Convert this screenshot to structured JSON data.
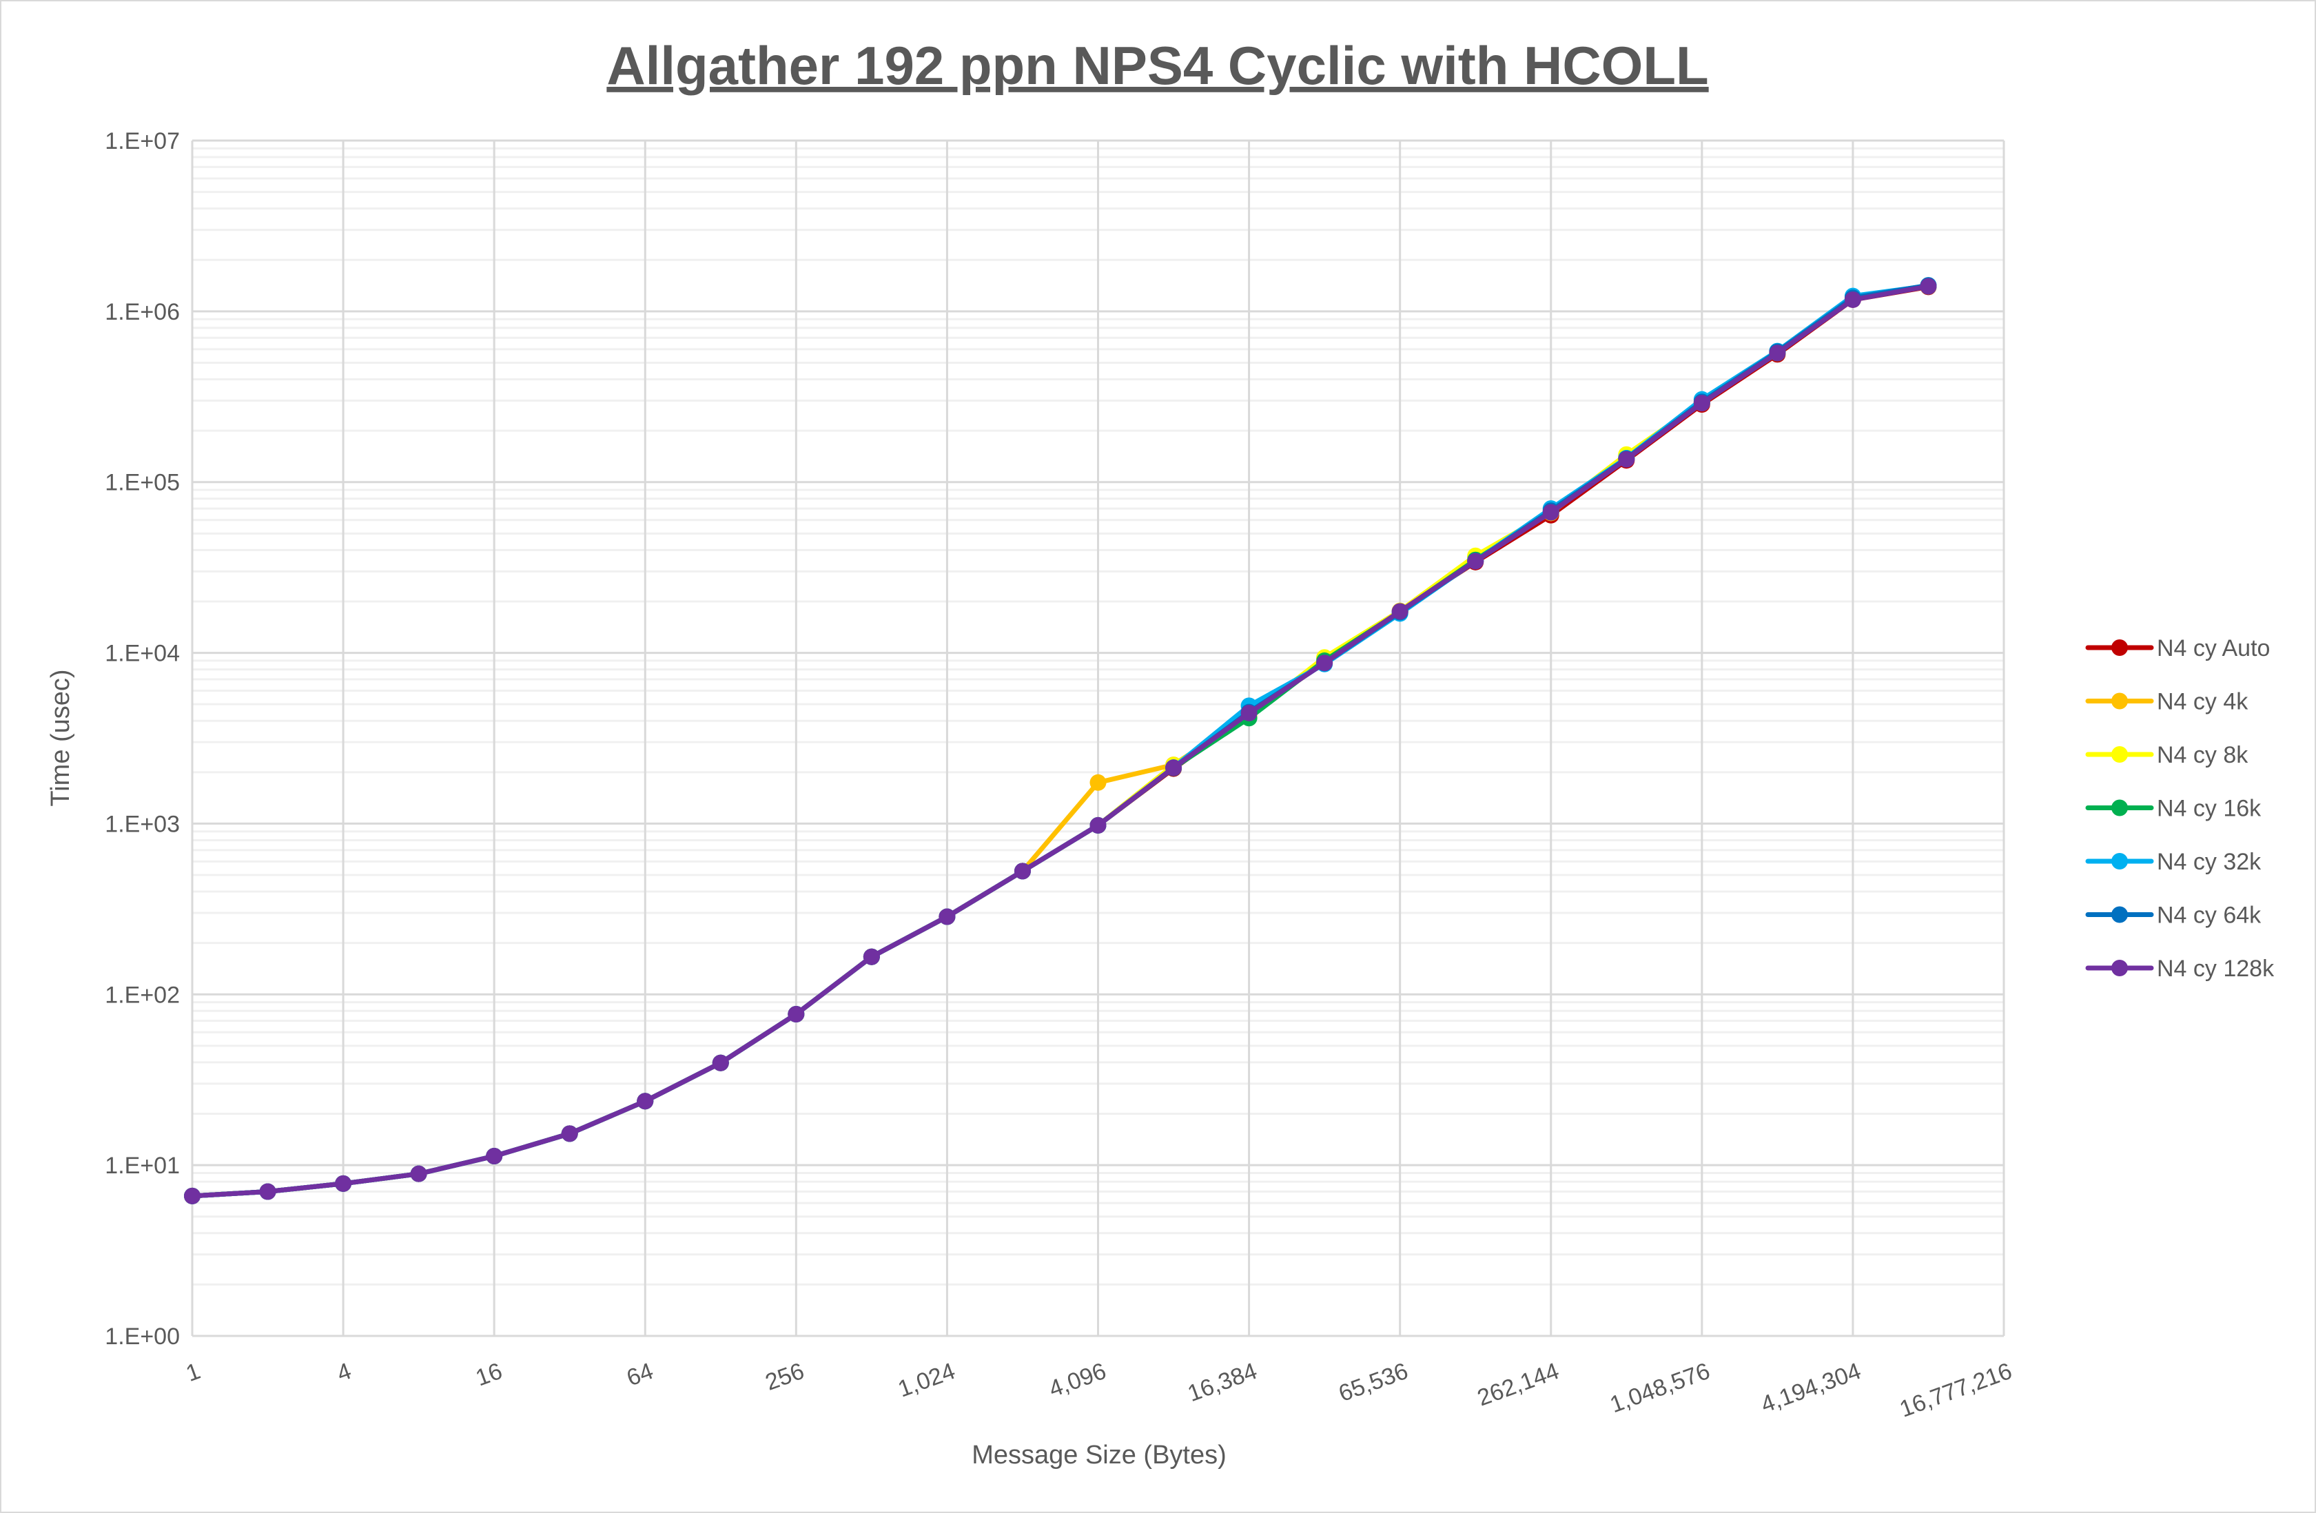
{
  "chart_data": {
    "type": "line",
    "title": "Allgather 192 ppn NPS4 Cyclic with HCOLL",
    "xlabel": "Message Size (Bytes)",
    "ylabel": "Time (usec)",
    "x_scale": "log2",
    "y_scale": "log10",
    "xlim": [
      1,
      16777216
    ],
    "ylim": [
      1,
      10000000
    ],
    "grid": true,
    "legend_position": "right",
    "x_tick_labels": [
      "1",
      "4",
      "16",
      "64",
      "256",
      "1,024",
      "4,096",
      "16,384",
      "65,536",
      "262,144",
      "1,048,576",
      "4,194,304",
      "16,777,216"
    ],
    "y_tick_labels": [
      "1.E+00",
      "1.E+01",
      "1.E+02",
      "1.E+03",
      "1.E+04",
      "1.E+05",
      "1.E+06",
      "1.E+07"
    ],
    "x": [
      1,
      2,
      4,
      8,
      16,
      32,
      64,
      128,
      256,
      512,
      1024,
      2048,
      4096,
      8192,
      16384,
      32768,
      65536,
      131072,
      262144,
      524288,
      1048576,
      2097152,
      4194304,
      8388608
    ],
    "series": [
      {
        "name": "N4 cy Auto",
        "color": "#C00000",
        "values": [
          6.6,
          7.0,
          7.8,
          8.9,
          11.3,
          15.3,
          23.7,
          39.7,
          76.6,
          166,
          285,
          527,
          977,
          2100,
          4350,
          8800,
          17500,
          34000,
          64000,
          134000,
          285000,
          560000,
          1170000,
          1390000
        ]
      },
      {
        "name": "N4 cy 4k",
        "color": "#FFC000",
        "values": [
          6.6,
          7.0,
          7.8,
          8.9,
          11.3,
          15.3,
          23.7,
          39.7,
          76.6,
          166,
          285,
          527,
          1740,
          2210,
          4300,
          9300,
          17600,
          36500,
          66000,
          142000,
          290000,
          575000,
          1180000,
          1400000
        ]
      },
      {
        "name": "N4 cy 8k",
        "color": "#FFFF00",
        "values": [
          6.6,
          7.0,
          7.8,
          8.9,
          11.3,
          15.3,
          23.7,
          39.7,
          76.6,
          166,
          285,
          527,
          977,
          2200,
          4250,
          9400,
          17600,
          37000,
          66500,
          145000,
          292000,
          570000,
          1190000,
          1400000
        ]
      },
      {
        "name": "N4 cy 16k",
        "color": "#00B050",
        "values": [
          6.6,
          7.0,
          7.8,
          8.9,
          11.3,
          15.3,
          23.7,
          39.7,
          76.6,
          166,
          285,
          527,
          977,
          2120,
          4150,
          9000,
          17400,
          35000,
          67000,
          138000,
          292000,
          570000,
          1190000,
          1400000
        ]
      },
      {
        "name": "N4 cy 32k",
        "color": "#00B0F0",
        "values": [
          6.6,
          7.0,
          7.8,
          8.9,
          11.3,
          15.3,
          23.7,
          39.7,
          76.6,
          166,
          285,
          527,
          977,
          2130,
          4900,
          8600,
          17000,
          34500,
          70000,
          138000,
          305000,
          585000,
          1230000,
          1410000
        ]
      },
      {
        "name": "N4 cy 64k",
        "color": "#0070C0",
        "values": [
          6.6,
          7.0,
          7.8,
          8.9,
          11.3,
          15.3,
          23.7,
          39.7,
          76.6,
          166,
          285,
          527,
          977,
          2120,
          4500,
          8700,
          17300,
          34500,
          68000,
          137000,
          295000,
          580000,
          1200000,
          1420000
        ]
      },
      {
        "name": "N4 cy 128k",
        "color": "#7030A0",
        "values": [
          6.6,
          7.0,
          7.8,
          8.9,
          11.3,
          15.3,
          23.7,
          39.7,
          76.6,
          166,
          285,
          527,
          977,
          2125,
          4440,
          8730,
          17500,
          34400,
          66500,
          136000,
          290000,
          570000,
          1170000,
          1400000
        ]
      }
    ]
  }
}
